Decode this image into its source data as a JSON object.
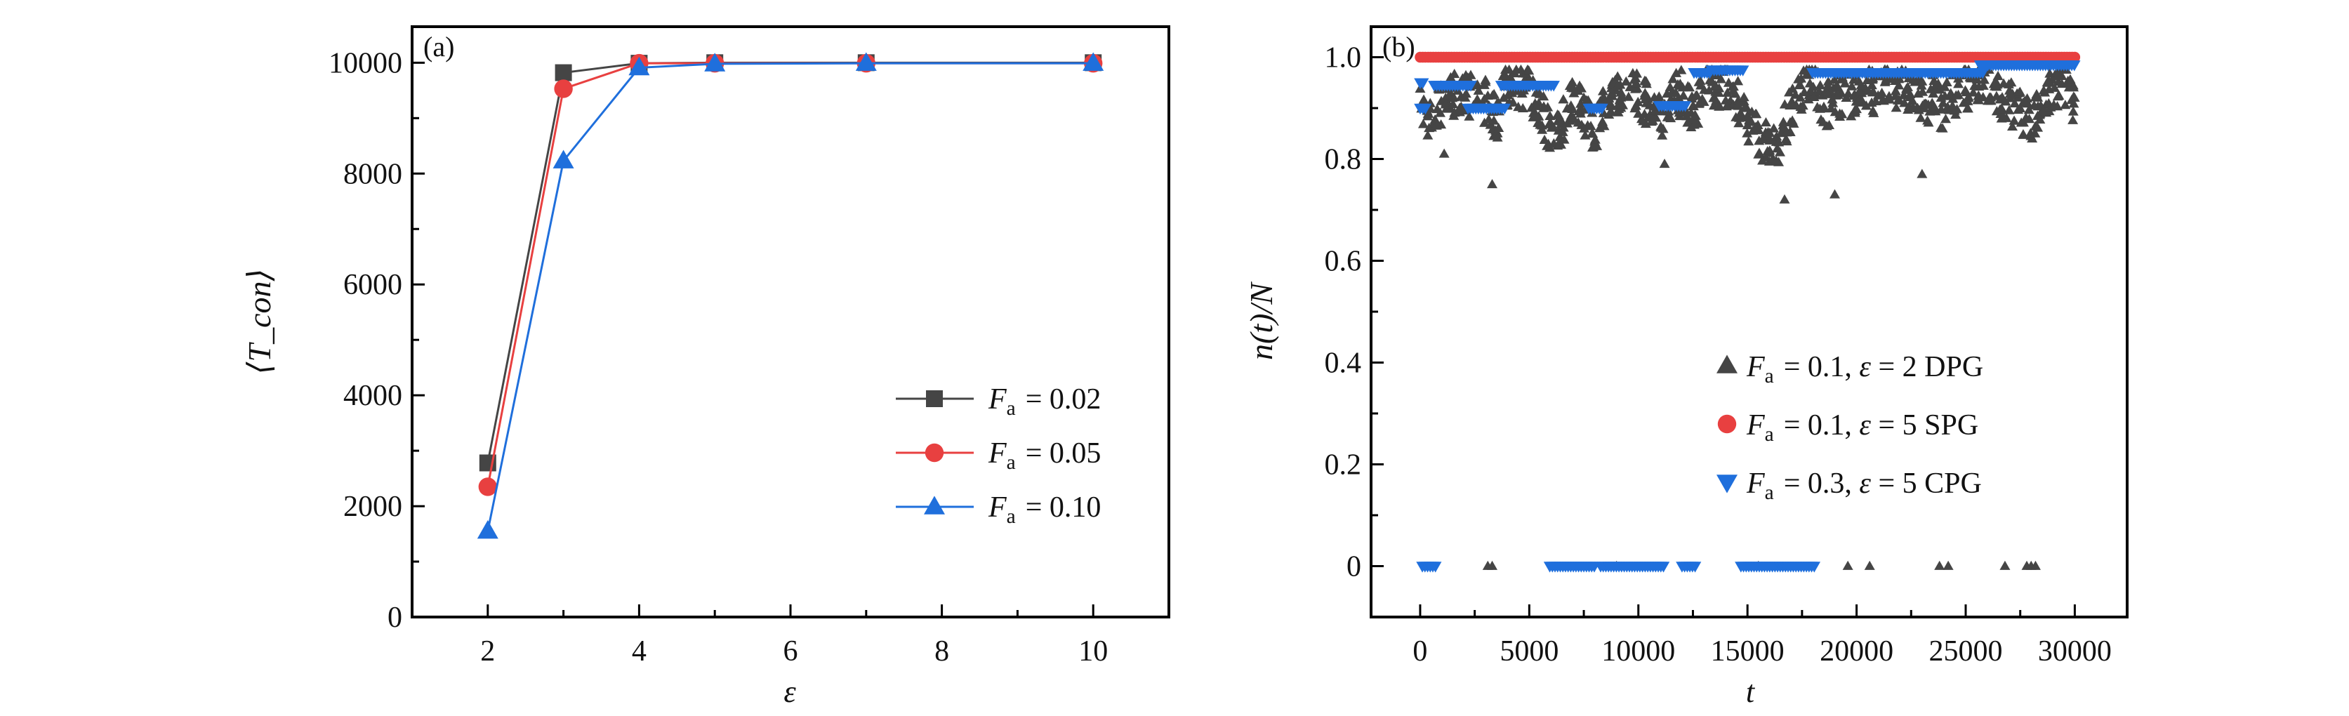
{
  "chart_data": [
    {
      "type": "line",
      "panel_label": "(a)",
      "xlabel": "ε",
      "ylabel": "⟨T_con⟩",
      "xlim": [
        1,
        11
      ],
      "ylim": [
        0,
        10650
      ],
      "xticks": [
        2,
        4,
        6,
        8,
        10
      ],
      "yticks": [
        0,
        2000,
        4000,
        6000,
        8000,
        10000
      ],
      "xtick_labels": [
        "2",
        "4",
        "6",
        "8",
        "10"
      ],
      "ytick_labels": [
        "0",
        "2000",
        "4000",
        "6000",
        "8000",
        "10000"
      ],
      "grid": false,
      "legend_position": "center-right",
      "x": [
        2,
        3,
        4,
        5,
        7,
        10
      ],
      "series": [
        {
          "name": "F_a = 0.02",
          "marker": "square",
          "color": "#454545",
          "values": [
            2780,
            9820,
            9990,
            10000,
            10000,
            10000
          ]
        },
        {
          "name": "F_a = 0.05",
          "marker": "circle",
          "color": "#e84040",
          "values": [
            2350,
            9530,
            9990,
            9990,
            9990,
            9990
          ]
        },
        {
          "name": "F_a = 0.10",
          "marker": "triangle-up",
          "color": "#1f6fdc",
          "values": [
            1550,
            8230,
            9910,
            9980,
            9990,
            9990
          ]
        }
      ]
    },
    {
      "type": "scatter",
      "panel_label": "(b)",
      "xlabel": "t",
      "ylabel": "n(t)/N",
      "xlim": [
        -2250,
        32400
      ],
      "ylim": [
        -0.1,
        1.06
      ],
      "xticks": [
        0,
        5000,
        10000,
        15000,
        20000,
        25000,
        30000
      ],
      "yticks": [
        0,
        0.2,
        0.4,
        0.6,
        0.8,
        1.0
      ],
      "xtick_labels": [
        "0",
        "5000",
        "10000",
        "15000",
        "20000",
        "25000",
        "30000"
      ],
      "ytick_labels": [
        "0",
        "0.2",
        "0.4",
        "0.6",
        "0.8",
        "1.0"
      ],
      "grid": false,
      "legend_position": "center-right",
      "series": [
        {
          "name": "F_a = 0.1, ε = 2 DPG",
          "marker": "triangle-up",
          "color": "#454545",
          "t_sampled": [
            0,
            500,
            1000,
            1500,
            2000,
            2500,
            3000,
            3500,
            4000,
            4500,
            5000,
            5500,
            6000,
            6500,
            7000,
            7500,
            8000,
            8500,
            9000,
            9500,
            10000,
            10500,
            11000,
            11500,
            12000,
            12500,
            13000,
            13500,
            14000,
            14500,
            15000,
            15500,
            16000,
            16500,
            17000,
            17500,
            18000,
            18500,
            19000,
            19500,
            20000,
            20500,
            21000,
            21500,
            22000,
            22500,
            23000,
            23500,
            24000,
            24500,
            25000,
            25500,
            26000,
            26500,
            27000,
            27500,
            28000,
            28500,
            29000,
            29500,
            30000
          ],
          "values_sampled": [
            0.9,
            0.88,
            0.91,
            0.93,
            0.92,
            0.93,
            0.91,
            0.88,
            0.95,
            0.94,
            0.93,
            0.9,
            0.85,
            0.87,
            0.92,
            0.89,
            0.86,
            0.9,
            0.93,
            0.94,
            0.93,
            0.9,
            0.88,
            0.92,
            0.93,
            0.9,
            0.93,
            0.95,
            0.94,
            0.92,
            0.88,
            0.85,
            0.82,
            0.84,
            0.9,
            0.94,
            0.95,
            0.9,
            0.92,
            0.93,
            0.92,
            0.94,
            0.93,
            0.95,
            0.94,
            0.93,
            0.91,
            0.92,
            0.9,
            0.93,
            0.94,
            0.95,
            0.95,
            0.92,
            0.91,
            0.9,
            0.86,
            0.91,
            0.93,
            0.95,
            0.9
          ],
          "outliers": [
            [
              3300,
              0.75
            ],
            [
              16700,
              0.72
            ],
            [
              19000,
              0.73
            ],
            [
              1100,
              0.81
            ],
            [
              23000,
              0.77
            ],
            [
              11200,
              0.79
            ]
          ],
          "zero_points_t": [
            3100,
            3300,
            9000,
            15500,
            19600,
            20600,
            23800,
            24200,
            26800,
            27800,
            28000,
            28200
          ]
        },
        {
          "name": "F_a = 0.1, ε = 5 SPG",
          "marker": "circle",
          "color": "#e84040",
          "segments": [
            [
              0,
              30000,
              1.0
            ]
          ]
        },
        {
          "name": "F_a = 0.3, ε = 5 CPG",
          "marker": "triangle-down",
          "color": "#1f6fdc",
          "segments": [
            [
              0,
              120,
              0.95
            ],
            [
              0,
              250,
              0.9
            ],
            [
              100,
              770,
              0
            ],
            [
              640,
              2380,
              0.945
            ],
            [
              2190,
              3930,
              0.9
            ],
            [
              3720,
              6130,
              0.945
            ],
            [
              5940,
              8000,
              0
            ],
            [
              7730,
              8400,
              0.9
            ],
            [
              8270,
              11160,
              0
            ],
            [
              10950,
              12200,
              0.905
            ],
            [
              12000,
              12700,
              0
            ],
            [
              12550,
              13350,
              0.97
            ],
            [
              13350,
              14820,
              0.975
            ],
            [
              14700,
              18100,
              0
            ],
            [
              17980,
              25800,
              0.97
            ],
            [
              25660,
              30000,
              0.985
            ]
          ]
        }
      ]
    }
  ]
}
